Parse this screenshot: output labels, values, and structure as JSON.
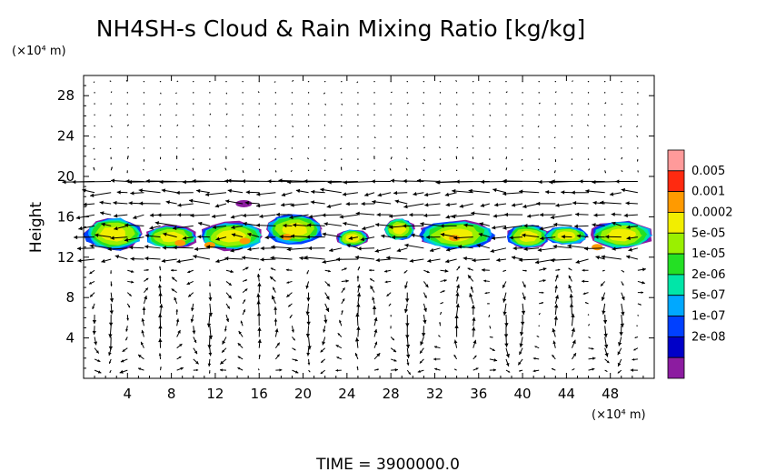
{
  "chart_data": {
    "type": "heatmap",
    "title": "NH4SH-s Cloud & Rain Mixing Ratio [kg/kg]",
    "xlabel": "",
    "ylabel": "Height",
    "x_unit": "(×10⁴ m)",
    "y_unit": "(×10⁴ m)",
    "xlim": [
      0,
      52
    ],
    "ylim": [
      0,
      30
    ],
    "x_ticks": [
      "4",
      "8",
      "12",
      "16",
      "20",
      "24",
      "28",
      "32",
      "36",
      "40",
      "44",
      "48"
    ],
    "y_ticks": [
      "4",
      "8",
      "12",
      "16",
      "20",
      "24",
      "28"
    ],
    "grid": false,
    "overlay": "wind vector field",
    "colorbar": {
      "labels": [
        "0.005",
        "0.001",
        "0.0002",
        "5e-05",
        "1e-05",
        "2e-06",
        "5e-07",
        "1e-07",
        "2e-08"
      ],
      "colors": [
        "#ff9a9a",
        "#ff2a10",
        "#ff9a00",
        "#f2ee00",
        "#9af000",
        "#24e024",
        "#00e6a8",
        "#00a8ff",
        "#0040ff",
        "#0000c8",
        "#8c1ca0"
      ]
    },
    "cloud_layer": {
      "y_range": [
        12.5,
        16
      ],
      "dominant_levels": [
        "1e-05",
        "5e-05"
      ],
      "max_level": "0.0002"
    },
    "footer": "TIME = 3900000.0"
  }
}
